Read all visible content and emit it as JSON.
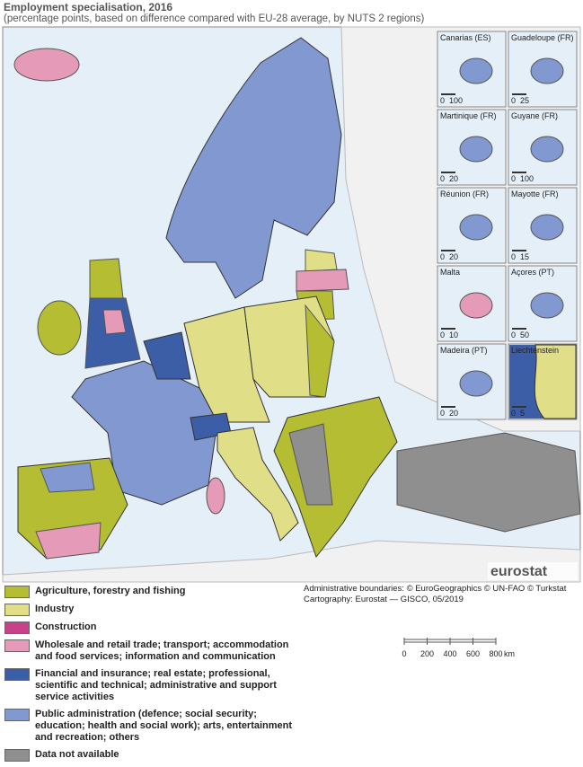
{
  "title": "Employment specialisation, 2016",
  "subtitle": "(percentage points, based on difference compared with EU-28 average, by NUTS 2 regions)",
  "insets": [
    {
      "name": "Canarias (ES)",
      "scale": [
        0,
        100
      ],
      "color": "#8198d0"
    },
    {
      "name": "Guadeloupe (FR)",
      "scale": [
        0,
        25
      ],
      "color": "#8198d0"
    },
    {
      "name": "Martinique (FR)",
      "scale": [
        0,
        20
      ],
      "color": "#8198d0"
    },
    {
      "name": "Guyane (FR)",
      "scale": [
        0,
        100
      ],
      "color": "#8198d0"
    },
    {
      "name": "Réunion (FR)",
      "scale": [
        0,
        20
      ],
      "color": "#8198d0"
    },
    {
      "name": "Mayotte (FR)",
      "scale": [
        0,
        15
      ],
      "color": "#8198d0"
    },
    {
      "name": "Malta",
      "scale": [
        0,
        10
      ],
      "color": "#e59ab8"
    },
    {
      "name": "Açores (PT)",
      "scale": [
        0,
        50
      ],
      "color": "#8198d0"
    },
    {
      "name": "Madeira (PT)",
      "scale": [
        0,
        20
      ],
      "color": "#8198d0"
    },
    {
      "name": "Liechtenstein",
      "scale": [
        0,
        5
      ],
      "color": "#e0df88"
    }
  ],
  "logo": "eurostat",
  "legend": [
    {
      "label": "Agriculture, forestry and fishing",
      "color": "#b5be32"
    },
    {
      "label": "Industry",
      "color": "#e0df88"
    },
    {
      "label": "Construction",
      "color": "#c9418a"
    },
    {
      "label": "Wholesale and retail trade; transport; accommodation and food services; information and communication",
      "color": "#e59ab8"
    },
    {
      "label": "Financial and insurance; real estate; professional, scientific and technical; administrative and support service activities",
      "color": "#3c5ea6"
    },
    {
      "label": "Public administration (defence; social security; education; health and social work); arts, entertainment and recreation; others",
      "color": "#8198d0"
    },
    {
      "label": "Data not available",
      "color": "#8f8f8f"
    }
  ],
  "credits": [
    "Administrative boundaries: © EuroGeographics © UN-FAO © Turkstat",
    "Cartography: Eurostat — GISCO, 05/2019"
  ],
  "scale_bar": {
    "ticks": [
      0,
      200,
      400,
      600,
      800
    ],
    "unit": "km"
  }
}
